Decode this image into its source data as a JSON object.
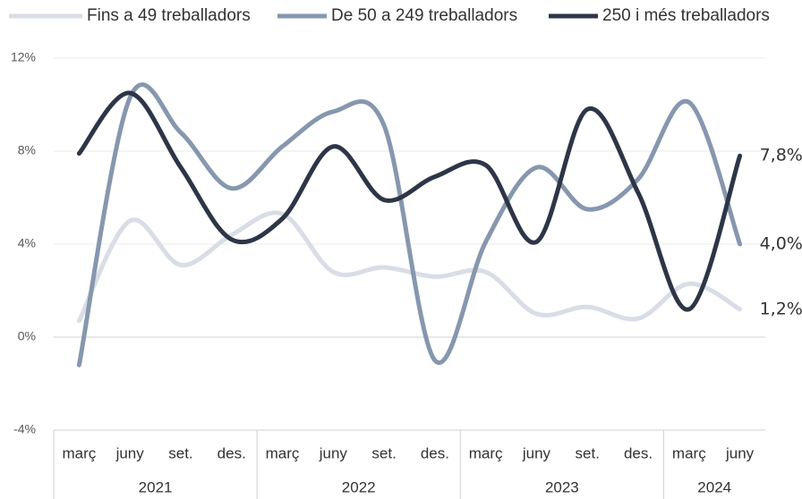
{
  "chart_data": {
    "type": "line",
    "categories": [
      "març",
      "juny",
      "set.",
      "des.",
      "març",
      "juny",
      "set.",
      "des.",
      "març",
      "juny",
      "set.",
      "des.",
      "març",
      "juny"
    ],
    "x_groups": [
      {
        "label": "2021",
        "size": 4
      },
      {
        "label": "2022",
        "size": 4
      },
      {
        "label": "2023",
        "size": 4
      },
      {
        "label": "2024",
        "size": 2
      }
    ],
    "ylim": [
      -4,
      12
    ],
    "yticks": [
      {
        "value": -4,
        "label": "-4%"
      },
      {
        "value": 0,
        "label": "0%"
      },
      {
        "value": 4,
        "label": "4%"
      },
      {
        "value": 8,
        "label": "8%"
      },
      {
        "value": 12,
        "label": "12%"
      }
    ],
    "grid": true,
    "smooth": true,
    "legend": "top",
    "series": [
      {
        "name": "Fins a 49 treballadors",
        "color": "#d9dde6",
        "values": [
          0.7,
          5.0,
          3.1,
          4.4,
          5.3,
          2.8,
          3.0,
          2.6,
          2.8,
          1.0,
          1.3,
          0.8,
          2.3,
          1.2
        ],
        "value_labels": [
          null,
          null,
          null,
          null,
          null,
          null,
          null,
          null,
          null,
          null,
          null,
          null,
          null,
          "1,2%"
        ]
      },
      {
        "name": "De 50 a 249 treballadors",
        "color": "#8697ae",
        "values": [
          -1.2,
          10.3,
          8.8,
          6.4,
          8.2,
          9.7,
          9.1,
          -1.0,
          4.1,
          7.3,
          5.5,
          6.8,
          10.1,
          4.0
        ],
        "value_labels": [
          null,
          null,
          null,
          null,
          null,
          null,
          null,
          null,
          null,
          null,
          null,
          null,
          null,
          "4,0%"
        ]
      },
      {
        "name": "250 i més treballadors",
        "color": "#2d3547",
        "values": [
          7.9,
          10.5,
          7.3,
          4.2,
          5.1,
          8.2,
          5.9,
          6.9,
          7.4,
          4.1,
          9.8,
          6.2,
          1.2,
          7.8
        ],
        "value_labels": [
          null,
          null,
          null,
          null,
          null,
          null,
          null,
          null,
          null,
          null,
          null,
          null,
          null,
          "7,8%"
        ]
      }
    ]
  }
}
